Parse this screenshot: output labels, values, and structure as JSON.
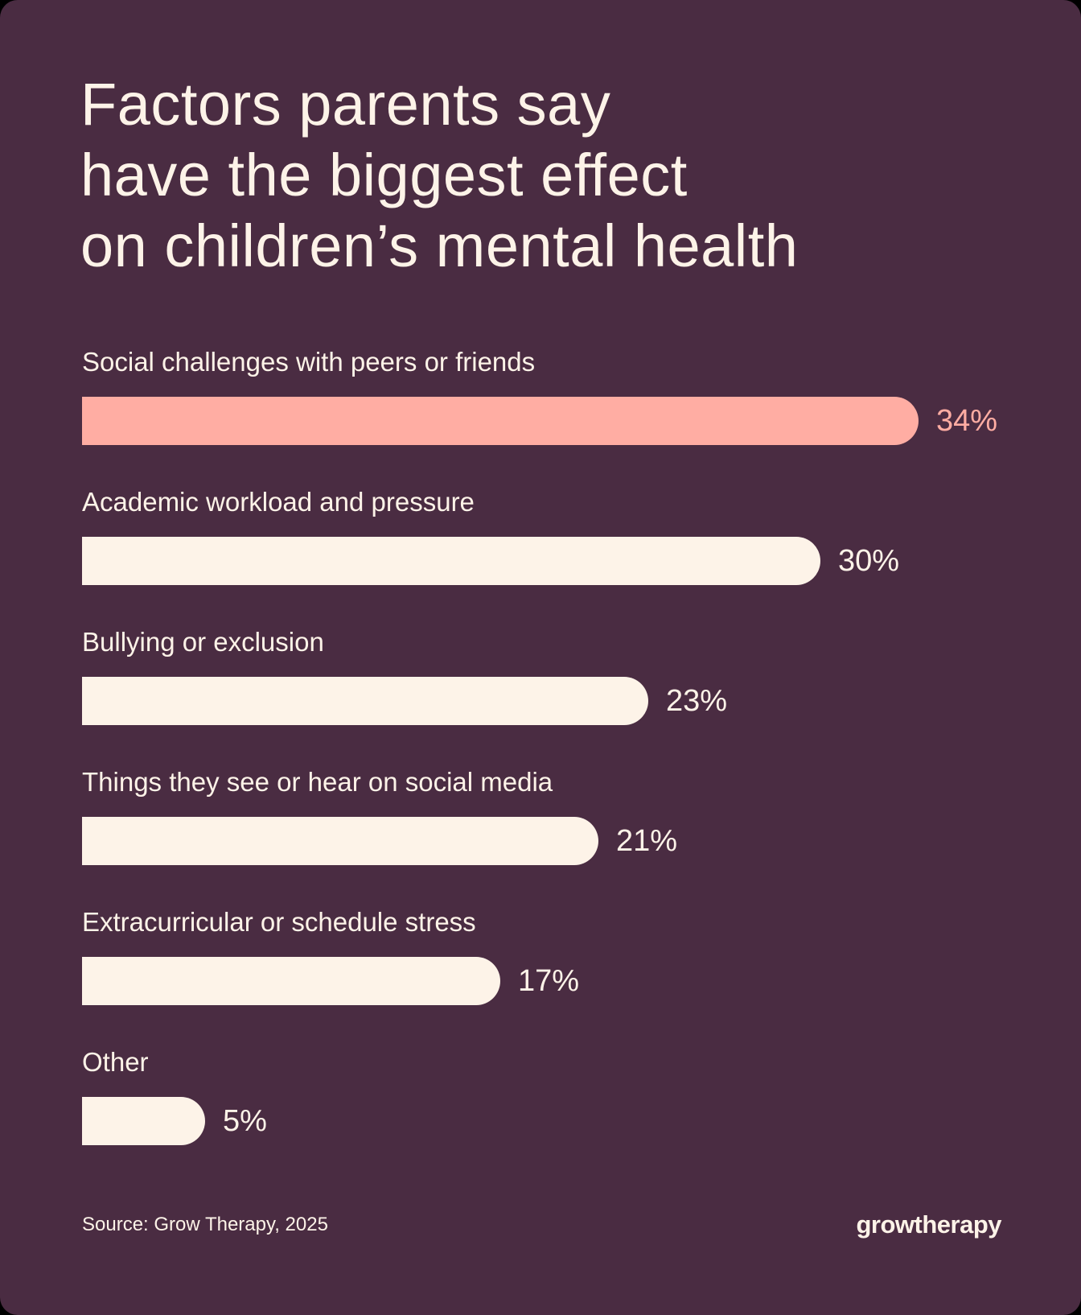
{
  "header": {
    "title_lines": [
      "Factors parents say",
      "have the biggest effect",
      "on children’s mental health"
    ]
  },
  "colors": {
    "background": "#4a2c42",
    "highlight": "#ffada3",
    "bar": "#fdf3e8",
    "text": "#fdf3e8"
  },
  "chart_data": {
    "type": "bar",
    "orientation": "horizontal",
    "title": "Factors parents say have the biggest effect on children’s mental health",
    "categories": [
      "Social challenges with peers or friends",
      "Academic workload and pressure",
      "Bullying or exclusion",
      "Things they see or hear on social media",
      "Extracurricular or schedule stress",
      "Other"
    ],
    "values": [
      34,
      30,
      23,
      21,
      17,
      5
    ],
    "value_labels": [
      "34%",
      "30%",
      "23%",
      "21%",
      "17%",
      "5%"
    ],
    "highlighted_index": 0,
    "xlabel": "",
    "ylabel": "",
    "grid": false,
    "legend": "none",
    "unit": "%"
  },
  "rows": [
    {
      "label": "Social challenges with peers or friends",
      "value_label": "34%",
      "highlight": true
    },
    {
      "label": "Academic workload and pressure",
      "value_label": "30%",
      "highlight": false
    },
    {
      "label": "Bullying or exclusion",
      "value_label": "23%",
      "highlight": false
    },
    {
      "label": "Things they see or hear on social media",
      "value_label": "21%",
      "highlight": false
    },
    {
      "label": "Extracurricular or schedule stress",
      "value_label": "17%",
      "highlight": false
    },
    {
      "label": "Other",
      "value_label": "5%",
      "highlight": false
    }
  ],
  "footer": {
    "source": "Source: Grow Therapy, 2025",
    "logo": "growtherapy"
  }
}
